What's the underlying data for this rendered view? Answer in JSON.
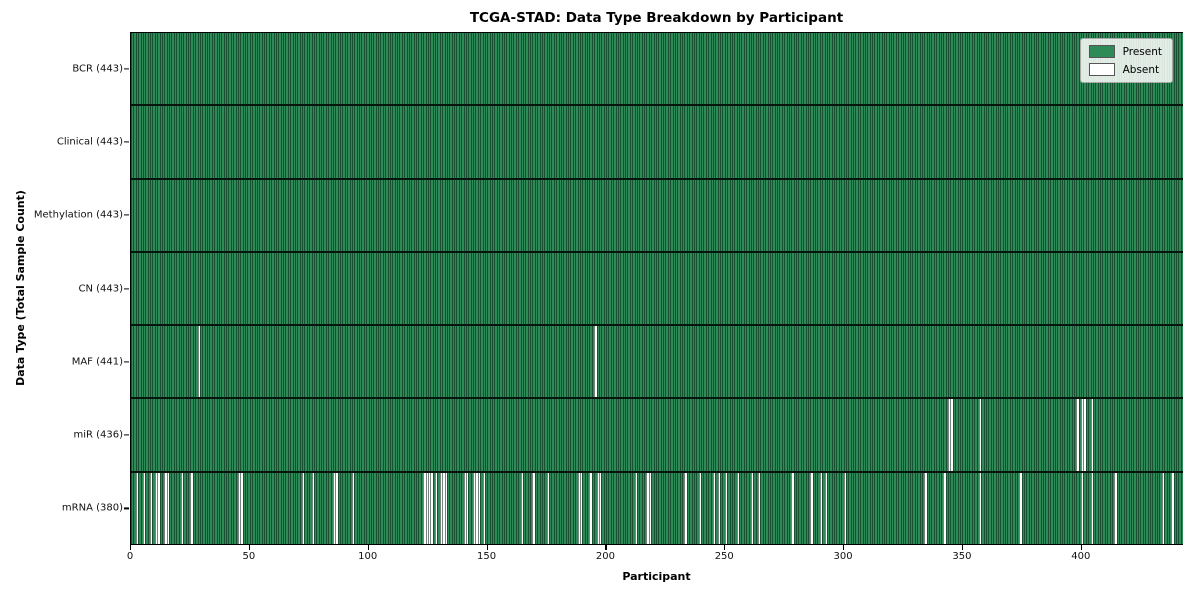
{
  "title": "TCGA-STAD: Data Type Breakdown by Participant",
  "axes": {
    "xlabel": "Participant",
    "ylabel": "Data Type (Total Sample Count)",
    "xticks": [
      0,
      50,
      100,
      150,
      200,
      250,
      300,
      350,
      400
    ],
    "xlim": [
      0,
      443
    ]
  },
  "legend": {
    "items": [
      {
        "label": "Present",
        "color": "#2e8b57"
      },
      {
        "label": "Absent",
        "color": "#ffffff"
      }
    ]
  },
  "chart_data": {
    "type": "heatmap",
    "title": "TCGA-STAD: Data Type Breakdown by Participant",
    "xlabel": "Participant",
    "ylabel": "Data Type (Total Sample Count)",
    "legend_position": "upper right",
    "n_participants": 443,
    "colors": {
      "present": "#2e8b57",
      "absent": "#ffffff",
      "edge": "rgba(5,35,20,0.55)"
    },
    "rows": [
      {
        "name": "BCR",
        "label": "BCR (443)",
        "count": 443,
        "absent": []
      },
      {
        "name": "Clinical",
        "label": "Clinical (443)",
        "count": 443,
        "absent": []
      },
      {
        "name": "Methylation",
        "label": "Methylation (443)",
        "count": 443,
        "absent": []
      },
      {
        "name": "CN",
        "label": "CN (443)",
        "count": 443,
        "absent": []
      },
      {
        "name": "MAF",
        "label": "MAF (441)",
        "count": 441,
        "absent": [
          28,
          195
        ]
      },
      {
        "name": "miR",
        "label": "miR (436)",
        "count": 436,
        "absent": [
          344,
          345,
          357,
          398,
          400,
          401,
          404
        ]
      },
      {
        "name": "mRNA",
        "label": "mRNA (380)",
        "count": 380,
        "absent": [
          2,
          5,
          8,
          10,
          11,
          14,
          15,
          21,
          25,
          45,
          46,
          72,
          76,
          85,
          86,
          93,
          123,
          124,
          125,
          126,
          128,
          130,
          131,
          132,
          140,
          141,
          144,
          145,
          146,
          148,
          164,
          169,
          175,
          188,
          189,
          193,
          196,
          197,
          212,
          217,
          218,
          233,
          239,
          245,
          247,
          250,
          255,
          261,
          264,
          278,
          286,
          290,
          292,
          300,
          334,
          342,
          357,
          374,
          400,
          404,
          414,
          434,
          438
        ]
      }
    ]
  }
}
